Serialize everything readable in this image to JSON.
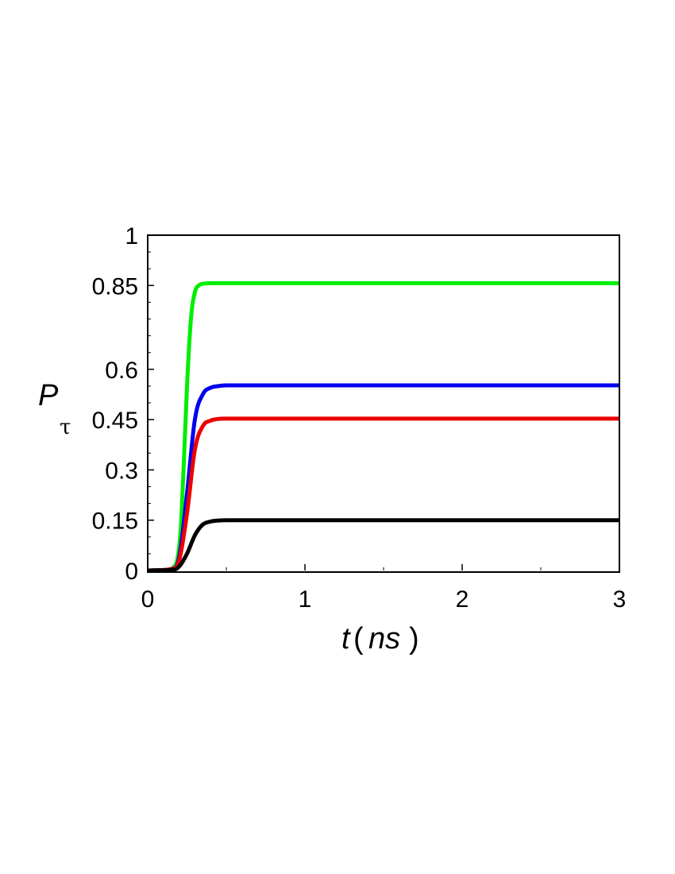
{
  "chart_data": {
    "type": "line",
    "title": "",
    "xlabel": {
      "var": "t",
      "open": "(",
      "unit": "ns",
      "close": ")"
    },
    "ylabel": {
      "main": "P",
      "sub": "τ"
    },
    "xlim": [
      0,
      3
    ],
    "ylim": [
      0,
      1
    ],
    "x_ticks": [
      0,
      1,
      2,
      3
    ],
    "x_tick_labels": [
      "0",
      "1",
      "2",
      "3"
    ],
    "y_ticks": [
      0,
      0.15,
      0.3,
      0.45,
      0.6,
      0.85,
      1
    ],
    "y_tick_labels": [
      "0",
      "0.15",
      "0.3",
      "0.45",
      "0.6",
      "0.85",
      "1"
    ],
    "grid": false,
    "legend": "none",
    "series": [
      {
        "color": "#00ee00",
        "x": [
          0,
          0.15,
          0.2,
          0.225,
          0.25,
          0.275,
          0.3,
          0.325,
          0.35,
          0.4,
          0.5,
          1,
          2,
          3
        ],
        "y": [
          0,
          0.004,
          0.07,
          0.27,
          0.55,
          0.75,
          0.83,
          0.85,
          0.855,
          0.857,
          0.857,
          0.857,
          0.857,
          0.857
        ]
      },
      {
        "color": "#0000ee",
        "x": [
          0,
          0.15,
          0.2,
          0.25,
          0.3,
          0.35,
          0.4,
          0.45,
          0.5,
          0.6,
          1,
          2,
          3
        ],
        "y": [
          0,
          0.004,
          0.04,
          0.23,
          0.45,
          0.525,
          0.545,
          0.55,
          0.552,
          0.552,
          0.552,
          0.552,
          0.552
        ]
      },
      {
        "color": "#ee0000",
        "x": [
          0,
          0.15,
          0.2,
          0.25,
          0.3,
          0.35,
          0.4,
          0.45,
          0.5,
          0.6,
          1,
          2,
          3
        ],
        "y": [
          0,
          0.004,
          0.03,
          0.17,
          0.36,
          0.43,
          0.447,
          0.452,
          0.453,
          0.453,
          0.453,
          0.453,
          0.453
        ]
      },
      {
        "color": "#000000",
        "x": [
          0,
          0.15,
          0.2,
          0.25,
          0.3,
          0.35,
          0.4,
          0.45,
          0.5,
          0.6,
          1,
          2,
          3
        ],
        "y": [
          0,
          0.002,
          0.012,
          0.05,
          0.105,
          0.137,
          0.146,
          0.149,
          0.15,
          0.15,
          0.15,
          0.15,
          0.15
        ]
      }
    ]
  }
}
